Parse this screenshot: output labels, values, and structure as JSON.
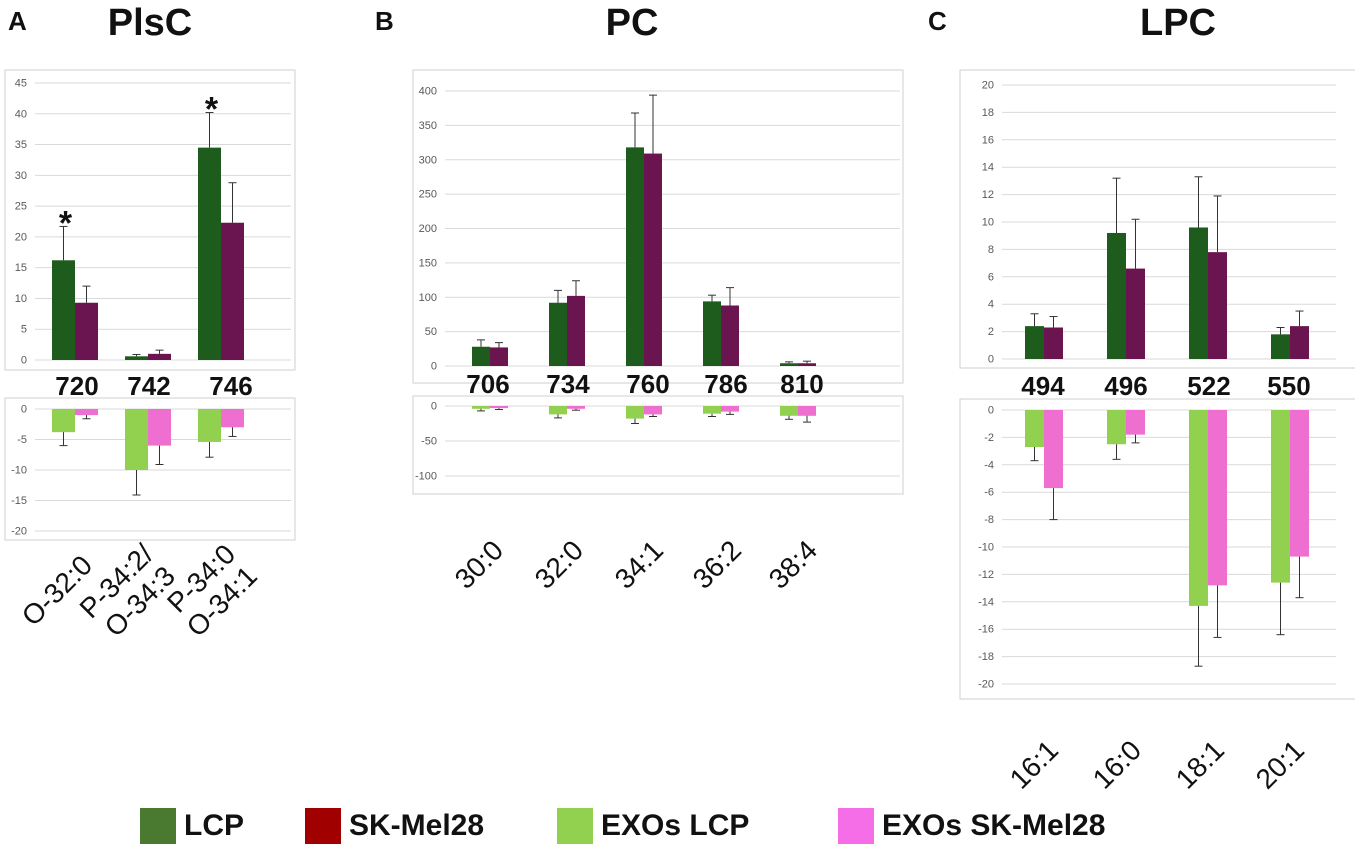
{
  "figure": {
    "colors": {
      "LCP": "#1d5c1d",
      "SK-Mel28": "#6b1550",
      "EXOs LCP": "#92d050",
      "EXOs SK-Mel28": "#ee6fd0",
      "legend_LCP": "#4a7a30",
      "legend_SK-Mel28": "#a00000",
      "legend_EXOs LCP": "#92d050",
      "legend_EXOs SK-Mel28": "#f56ee7"
    },
    "legend": [
      "LCP",
      "SK-Mel28",
      "EXOs LCP",
      "EXOs SK-Mel28"
    ]
  },
  "chart_data": [
    {
      "panel": "A",
      "title": "PlsC",
      "type": "bar",
      "categories": [
        "720",
        "742",
        "746"
      ],
      "category_labels": [
        [
          "O-32:0"
        ],
        [
          "P-34:2/",
          "O-34:3"
        ],
        [
          "P-34:0",
          "O-34:1"
        ]
      ],
      "top": {
        "ylim": [
          0,
          45
        ],
        "yticks": [
          0,
          5,
          10,
          15,
          20,
          25,
          30,
          35,
          40,
          45
        ],
        "series": [
          {
            "name": "LCP",
            "values": [
              16.2,
              0.6,
              34.5
            ],
            "errors": [
              5.5,
              0.3,
              5.7
            ]
          },
          {
            "name": "SK-Mel28",
            "values": [
              9.3,
              1.0,
              22.3
            ],
            "errors": [
              2.7,
              0.6,
              6.5
            ]
          }
        ],
        "annotations": [
          {
            "category": "720",
            "text": "*"
          },
          {
            "category": "746",
            "text": "*"
          }
        ]
      },
      "bottom": {
        "ylim": [
          -20,
          0
        ],
        "yticks": [
          0,
          -5,
          -10,
          -15,
          -20
        ],
        "series": [
          {
            "name": "EXOs LCP",
            "values": [
              -3.8,
              -10.0,
              -5.4
            ],
            "errors": [
              2.2,
              4.1,
              2.5
            ]
          },
          {
            "name": "EXOs SK-Mel28",
            "values": [
              -1.0,
              -6.0,
              -3.0
            ],
            "errors": [
              0.6,
              3.1,
              1.5
            ]
          }
        ]
      }
    },
    {
      "panel": "B",
      "title": "PC",
      "type": "bar",
      "categories": [
        "706",
        "734",
        "760",
        "786",
        "810"
      ],
      "category_labels": [
        [
          "30:0"
        ],
        [
          "32:0"
        ],
        [
          "34:1"
        ],
        [
          "36:2"
        ],
        [
          "38:4"
        ]
      ],
      "top": {
        "ylim": [
          0,
          400
        ],
        "yticks": [
          0,
          50,
          100,
          150,
          200,
          250,
          300,
          350,
          400
        ],
        "series": [
          {
            "name": "LCP",
            "values": [
              28,
              92,
              318,
              94,
              4
            ],
            "errors": [
              10,
              18,
              50,
              9,
              2
            ]
          },
          {
            "name": "SK-Mel28",
            "values": [
              27,
              102,
              309,
              88,
              4
            ],
            "errors": [
              7,
              22,
              85,
              26,
              3
            ]
          }
        ],
        "annotations": []
      },
      "bottom": {
        "ylim": [
          -100,
          0
        ],
        "yticks": [
          0,
          -50,
          -100
        ],
        "series": [
          {
            "name": "EXOs LCP",
            "values": [
              -4,
              -12,
              -18,
              -11,
              -14
            ],
            "errors": [
              3,
              5,
              7,
              4,
              5
            ]
          },
          {
            "name": "EXOs SK-Mel28",
            "values": [
              -3,
              -4,
              -12,
              -8,
              -14
            ],
            "errors": [
              2,
              2,
              3,
              4,
              9
            ]
          }
        ]
      }
    },
    {
      "panel": "C",
      "title": "LPC",
      "type": "bar",
      "categories": [
        "494",
        "496",
        "522",
        "550"
      ],
      "category_labels": [
        [
          "16:1"
        ],
        [
          "16:0"
        ],
        [
          "18:1"
        ],
        [
          "20:1"
        ]
      ],
      "top": {
        "ylim": [
          0,
          20
        ],
        "yticks": [
          0,
          2,
          4,
          6,
          8,
          10,
          12,
          14,
          16,
          18,
          20
        ],
        "series": [
          {
            "name": "LCP",
            "values": [
              2.4,
              9.2,
              9.6,
              1.8
            ],
            "errors": [
              0.9,
              4.0,
              3.7,
              0.5
            ]
          },
          {
            "name": "SK-Mel28",
            "values": [
              2.3,
              6.6,
              7.8,
              2.4
            ],
            "errors": [
              0.8,
              3.6,
              4.1,
              1.1
            ]
          }
        ],
        "annotations": []
      },
      "bottom": {
        "ylim": [
          -20,
          0
        ],
        "yticks": [
          0,
          -2,
          -4,
          -6,
          -8,
          -10,
          -12,
          -14,
          -16,
          -18,
          -20
        ],
        "series": [
          {
            "name": "EXOs LCP",
            "values": [
              -2.7,
              -2.5,
              -14.3,
              -12.6
            ],
            "errors": [
              1.0,
              1.1,
              4.4,
              3.8
            ]
          },
          {
            "name": "EXOs SK-Mel28",
            "values": [
              -5.7,
              -1.8,
              -12.8,
              -10.7
            ],
            "errors": [
              2.3,
              0.6,
              3.8,
              3.0
            ]
          }
        ]
      }
    }
  ]
}
